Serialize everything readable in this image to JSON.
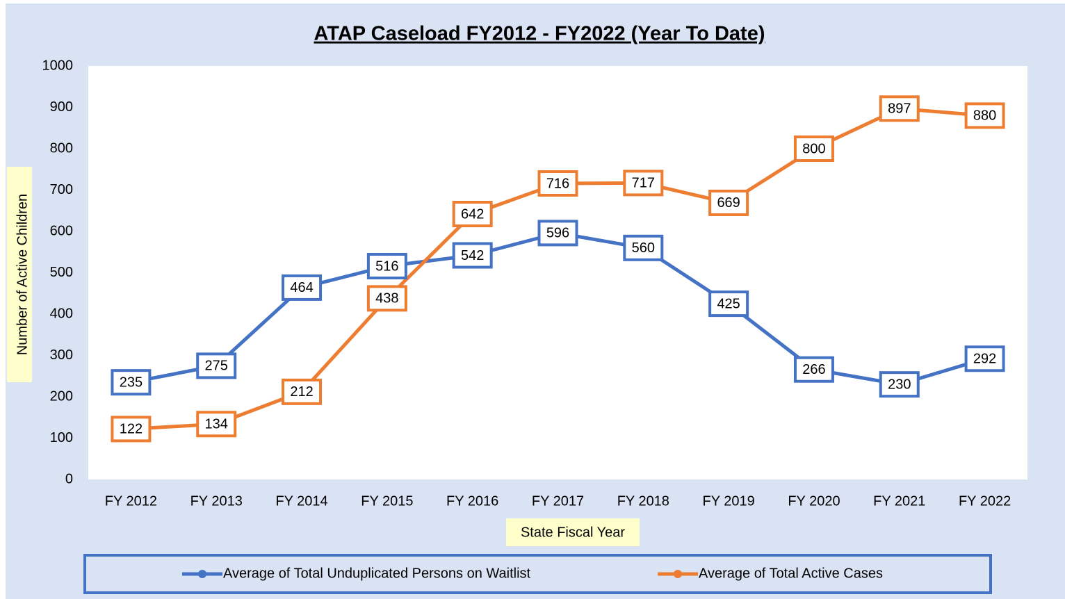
{
  "chart_data": {
    "type": "line",
    "title": "ATAP Caseload FY2012 - FY2022 (Year To Date)",
    "x_label": "State Fiscal Year",
    "y_label": "Number of Active Children",
    "categories": [
      "FY 2012",
      "FY 2013",
      "FY 2014",
      "FY 2015",
      "FY 2016",
      "FY 2017",
      "FY 2018",
      "FY 2019",
      "FY 2020",
      "FY 2021",
      "FY 2022"
    ],
    "series": [
      {
        "name": "Average of Total Unduplicated Persons on Waitlist",
        "color": "#4472c4",
        "values": [
          235,
          275,
          464,
          516,
          542,
          596,
          560,
          425,
          266,
          230,
          292
        ]
      },
      {
        "name": "Average of Total Active Cases",
        "color": "#ed7d31",
        "values": [
          122,
          134,
          212,
          438,
          642,
          716,
          717,
          669,
          800,
          897,
          880
        ]
      }
    ],
    "ylim": [
      0,
      1000
    ],
    "yticks": [
      0,
      100,
      200,
      300,
      400,
      500,
      600,
      700,
      800,
      900,
      1000
    ]
  }
}
